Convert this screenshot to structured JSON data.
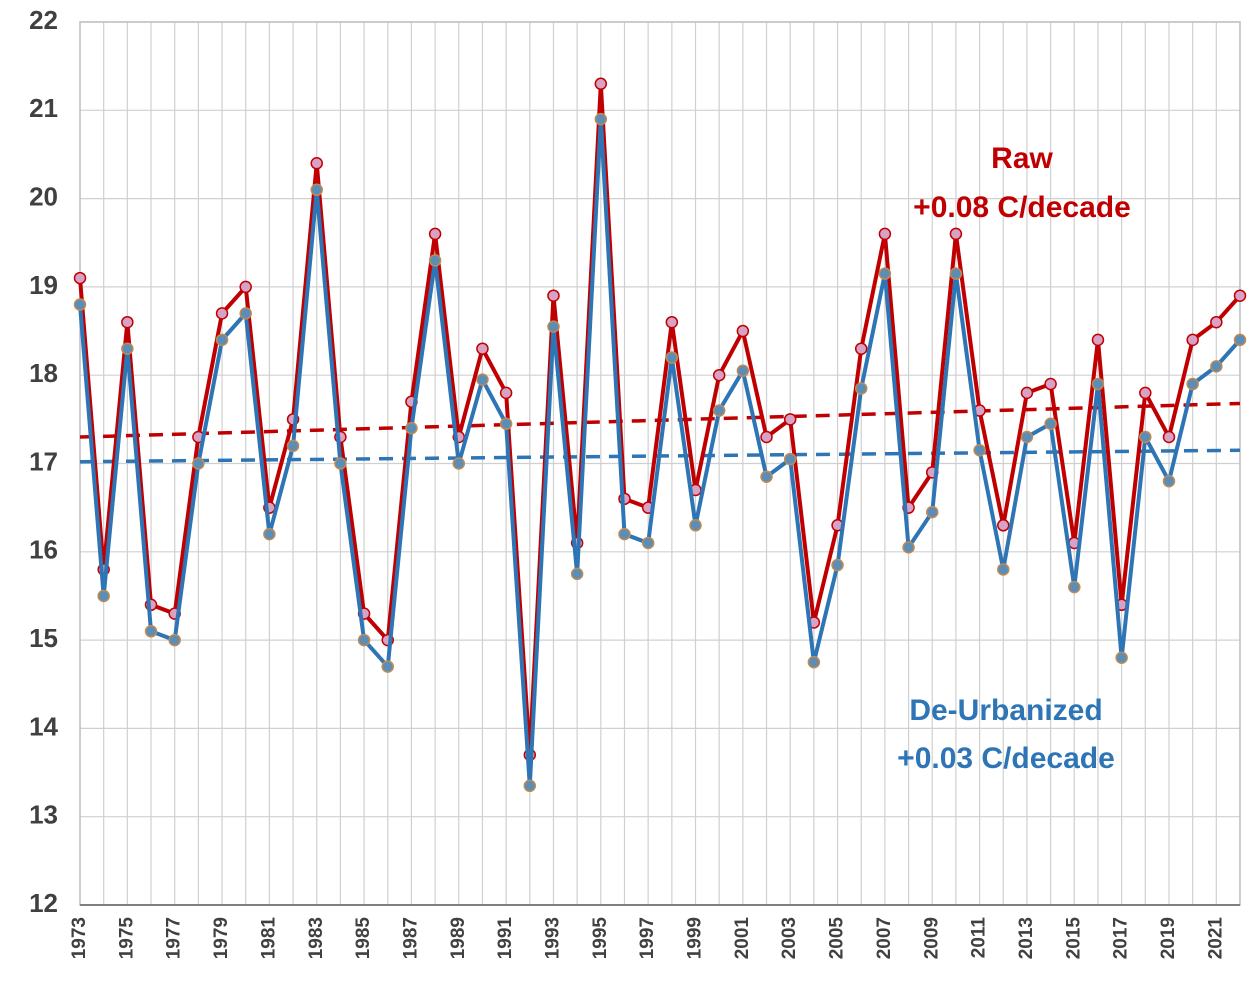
{
  "chart_data": {
    "type": "line",
    "categories": [
      "1973",
      null,
      "1975",
      null,
      "1977",
      null,
      "1979",
      null,
      "1981",
      null,
      "1983",
      null,
      "1985",
      null,
      "1987",
      null,
      "1989",
      null,
      "1991",
      null,
      "1993",
      null,
      "1995",
      null,
      "1997",
      null,
      "1999",
      null,
      "2001",
      null,
      "2003",
      null,
      "2005",
      null,
      "2007",
      null,
      "2009",
      null,
      "2011",
      null,
      "2013",
      null,
      "2015",
      null,
      "2017",
      null,
      "2019",
      null,
      "2021",
      null
    ],
    "series": [
      {
        "name": "Raw",
        "color": "#c00000",
        "marker_fill": "#d8a2c6",
        "values": [
          19.1,
          15.8,
          18.6,
          15.4,
          15.3,
          17.3,
          18.7,
          19.0,
          16.5,
          17.5,
          20.4,
          17.3,
          15.3,
          15.0,
          17.7,
          19.6,
          17.3,
          18.3,
          17.8,
          13.7,
          18.9,
          16.1,
          21.3,
          16.6,
          16.5,
          18.6,
          16.7,
          18.0,
          18.5,
          17.3,
          17.5,
          15.2,
          16.3,
          18.3,
          19.6,
          16.5,
          16.9,
          19.6,
          17.6,
          16.3,
          17.8,
          17.9,
          16.1,
          18.4,
          15.4,
          17.8,
          17.3,
          18.4,
          18.6,
          18.9
        ]
      },
      {
        "name": "De-Urbanized",
        "color": "#2e75b6",
        "marker_fill": "#5a8db8",
        "values": [
          18.8,
          15.5,
          18.3,
          15.1,
          15.0,
          17.0,
          18.4,
          18.7,
          16.2,
          17.2,
          20.1,
          17.0,
          15.0,
          14.7,
          17.4,
          19.3,
          17.0,
          17.95,
          17.45,
          13.35,
          18.55,
          15.75,
          20.9,
          16.2,
          16.1,
          18.2,
          16.3,
          17.6,
          18.05,
          16.85,
          17.05,
          14.75,
          15.85,
          17.85,
          19.15,
          16.05,
          16.45,
          19.15,
          17.15,
          15.8,
          17.3,
          17.45,
          15.6,
          17.9,
          14.8,
          17.3,
          16.8,
          17.9,
          18.1,
          18.4
        ]
      }
    ],
    "trends": [
      {
        "color": "#c00000",
        "values": [
          17.3,
          17.68
        ]
      },
      {
        "color": "#2e75b6",
        "values": [
          17.02,
          17.15
        ]
      }
    ],
    "annotations": [
      {
        "text": "Raw",
        "color": "#c00000"
      },
      {
        "text": "+0.08 C/decade",
        "color": "#c00000"
      },
      {
        "text": "De-Urbanized",
        "color": "#2e75b6"
      },
      {
        "text": "+0.03 C/decade",
        "color": "#2e75b6"
      }
    ],
    "ylim": [
      12,
      22
    ],
    "yticks": [
      12,
      13,
      14,
      15,
      16,
      17,
      18,
      19,
      20,
      21,
      22
    ],
    "grid": true
  }
}
